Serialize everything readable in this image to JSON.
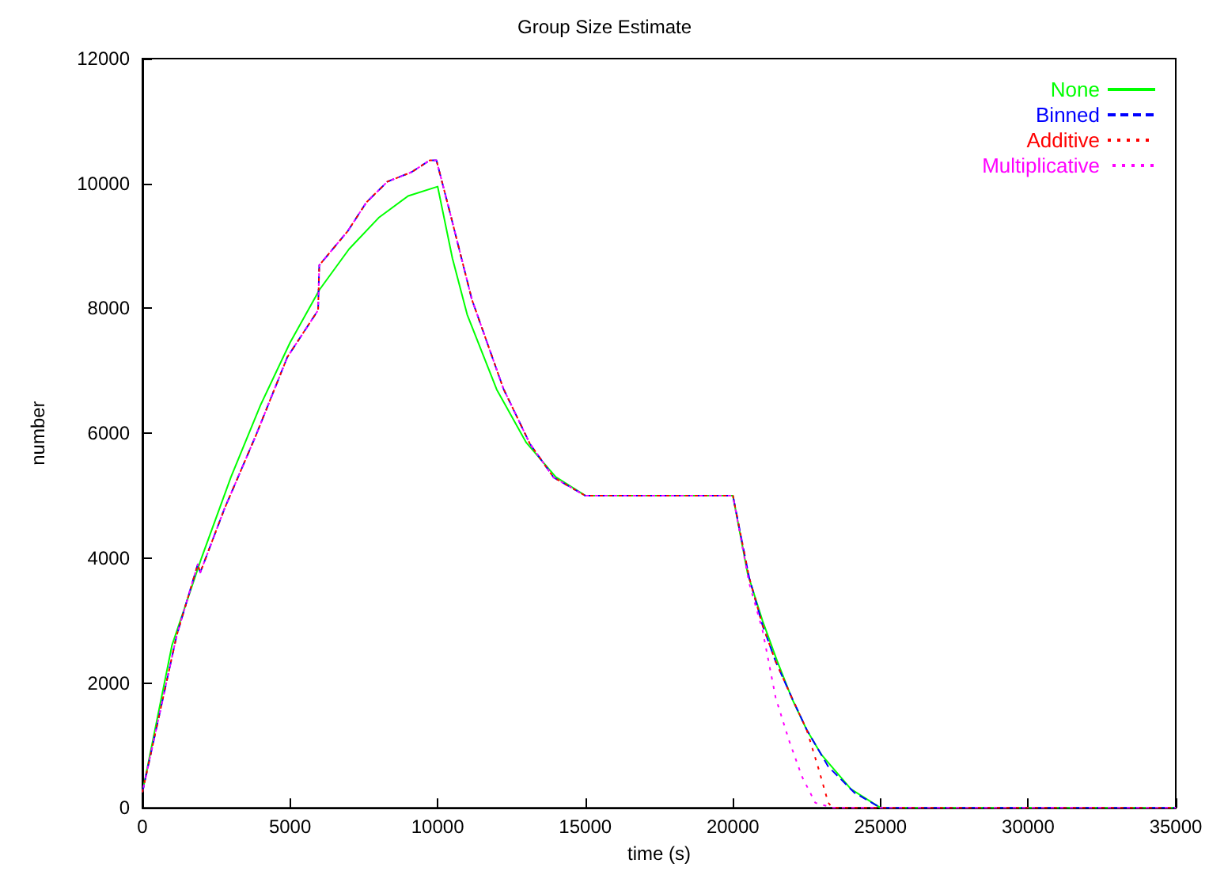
{
  "chart_data": {
    "type": "line",
    "title": "Group Size Estimate",
    "xlabel": "time (s)",
    "ylabel": "number",
    "xlim": [
      0,
      35000
    ],
    "xticks": [
      0,
      5000,
      10000,
      15000,
      20000,
      25000,
      30000,
      35000
    ],
    "ylim": [
      0,
      12000
    ],
    "yticks": [
      0,
      2000,
      4000,
      6000,
      8000,
      10000,
      12000
    ],
    "grid": false,
    "legend": "top right",
    "marker": "none",
    "series": [
      {
        "name": "None",
        "color": "#00ff00",
        "line_style": "solid",
        "x": [
          0,
          1000,
          2000,
          3000,
          4000,
          5000,
          6000,
          7000,
          8000,
          9000,
          10000,
          10500,
          11000,
          12000,
          13000,
          14000,
          15000,
          20000,
          20500,
          21000,
          21500,
          22000,
          22500,
          23000,
          24000,
          25000,
          35000
        ],
        "values": [
          250,
          2600,
          4000,
          5300,
          6450,
          7450,
          8300,
          8950,
          9450,
          9800,
          9950,
          8800,
          7900,
          6700,
          5850,
          5300,
          5000,
          5000,
          3750,
          3000,
          2350,
          1750,
          1250,
          850,
          300,
          0,
          0
        ]
      },
      {
        "name": "Binned",
        "color": "#0000ff",
        "line_style": "dashed",
        "x": [
          0,
          1160,
          1875,
          1960,
          2770,
          3840,
          4910,
          5950,
          5990,
          6960,
          7590,
          8300,
          9110,
          9730,
          9960,
          10440,
          11160,
          12230,
          13125,
          13930,
          15000,
          20000,
          20550,
          21000,
          21450,
          22000,
          22500,
          23230,
          24120,
          25000,
          35000
        ],
        "values": [
          250,
          2760,
          3900,
          3770,
          4780,
          5960,
          7220,
          7970,
          8690,
          9240,
          9700,
          10030,
          10180,
          10370,
          10370,
          9490,
          8140,
          6710,
          5830,
          5290,
          5000,
          5000,
          3690,
          2930,
          2340,
          1760,
          1250,
          660,
          240,
          0,
          0
        ]
      },
      {
        "name": "Additive",
        "color": "#ff0000",
        "line_style": "dotted",
        "x": [
          0,
          1160,
          1875,
          1960,
          2770,
          3840,
          4910,
          5950,
          5990,
          6960,
          7590,
          8300,
          9110,
          9730,
          9960,
          10440,
          11160,
          12230,
          13125,
          13930,
          15000,
          20000,
          20550,
          21000,
          21450,
          22000,
          22500,
          22880,
          23230,
          23375,
          35000
        ],
        "values": [
          250,
          2760,
          3900,
          3770,
          4780,
          5960,
          7220,
          7970,
          8690,
          9240,
          9700,
          10030,
          10180,
          10370,
          10370,
          9490,
          8140,
          6710,
          5830,
          5290,
          5000,
          5000,
          3690,
          2930,
          2340,
          1760,
          1250,
          660,
          80,
          0,
          0
        ]
      },
      {
        "name": "Multiplicative",
        "color": "#ff00ff",
        "line_style": "dotted",
        "x": [
          0,
          1160,
          1875,
          1960,
          2770,
          3840,
          4910,
          5950,
          5990,
          6960,
          7590,
          8300,
          9110,
          9730,
          9960,
          10440,
          11160,
          12230,
          13125,
          13930,
          15000,
          20000,
          20550,
          21000,
          21450,
          21900,
          22340,
          22790,
          23400,
          35000
        ],
        "values": [
          250,
          2760,
          3900,
          3770,
          4780,
          5960,
          7220,
          7970,
          8690,
          9240,
          9700,
          10030,
          10180,
          10370,
          10370,
          9490,
          8140,
          6710,
          5830,
          5290,
          5000,
          5000,
          3600,
          2850,
          1760,
          1080,
          500,
          80,
          0,
          0
        ]
      }
    ]
  }
}
